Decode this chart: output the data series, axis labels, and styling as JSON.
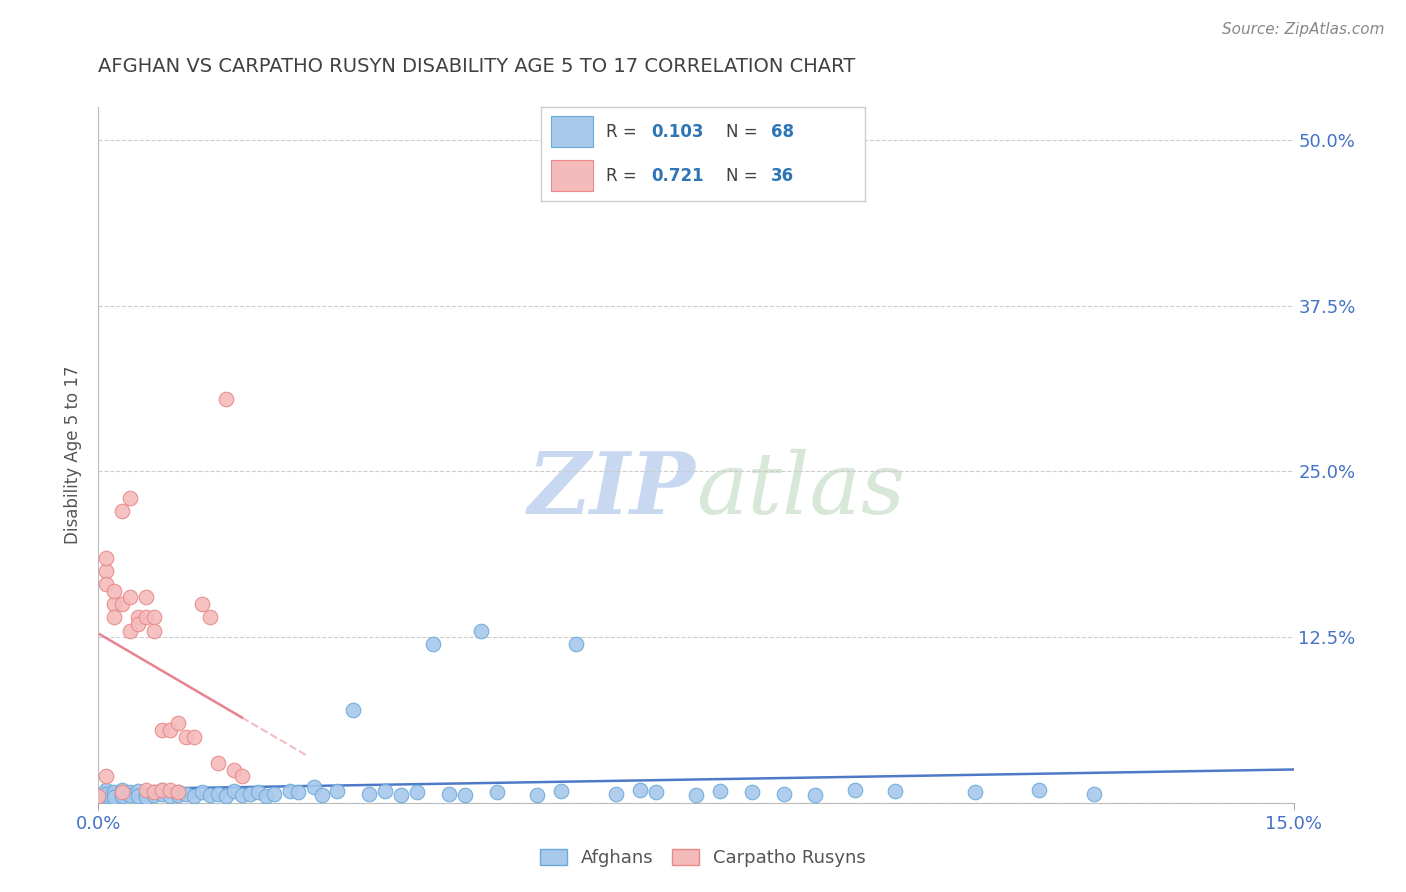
{
  "title": "AFGHAN VS CARPATHO RUSYN DISABILITY AGE 5 TO 17 CORRELATION CHART",
  "source": "Source: ZipAtlas.com",
  "ylabel": "Disability Age 5 to 17",
  "xlim": [
    0.0,
    0.15
  ],
  "ylim": [
    0.0,
    0.525
  ],
  "afghan_color": "#A8C8EC",
  "afghan_edge": "#6AAAD8",
  "rusyn_color": "#F5BBBB",
  "rusyn_edge": "#E88888",
  "r_afghan": 0.103,
  "n_afghan": 68,
  "r_rusyn": 0.721,
  "n_rusyn": 36,
  "legend_val_color": "#2E75B6",
  "legend_label_color": "#404040",
  "trend_afghan_color": "#4472C4",
  "trend_rusyn_color": "#E87A8A",
  "background_color": "#FFFFFF",
  "grid_color": "#CCCCCC",
  "title_color": "#404040",
  "axis_label_color": "#555555",
  "tick_color": "#4472C4",
  "watermark_zip_color": "#C8D8F0",
  "watermark_atlas_color": "#D8E8D8"
}
